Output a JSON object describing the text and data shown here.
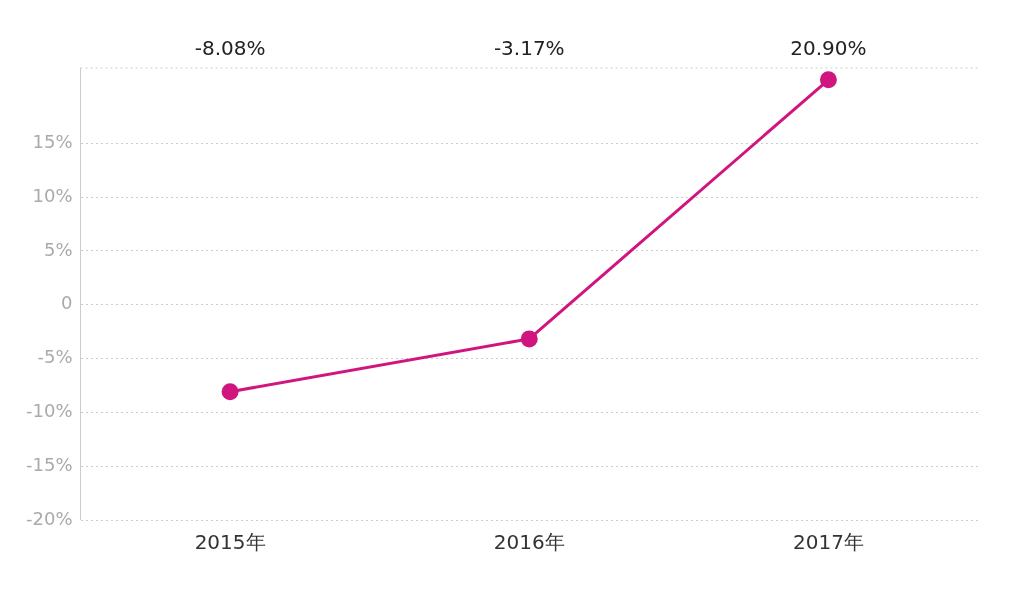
{
  "chart_data": {
    "type": "line",
    "categories": [
      "2015年",
      "2016年",
      "2017年"
    ],
    "series": [
      {
        "color": "#d1157f",
        "values": [
          -8.08,
          -3.17,
          20.9
        ]
      }
    ],
    "ylim": [
      -20,
      22
    ],
    "yticks": [
      {
        "value": -20,
        "label": "-20%"
      },
      {
        "value": -15,
        "label": "-15%"
      },
      {
        "value": -10,
        "label": "-10%"
      },
      {
        "value": -5,
        "label": "-5%"
      },
      {
        "value": 0,
        "label": "0"
      },
      {
        "value": 5,
        "label": "5%"
      },
      {
        "value": 10,
        "label": "10%"
      },
      {
        "value": 15,
        "label": "15%"
      }
    ],
    "value_labels": [
      "-8.08%",
      "-3.17%",
      "20.90%"
    ],
    "grid": "y",
    "marker": "circle",
    "line_style": "solid",
    "legend": false
  }
}
